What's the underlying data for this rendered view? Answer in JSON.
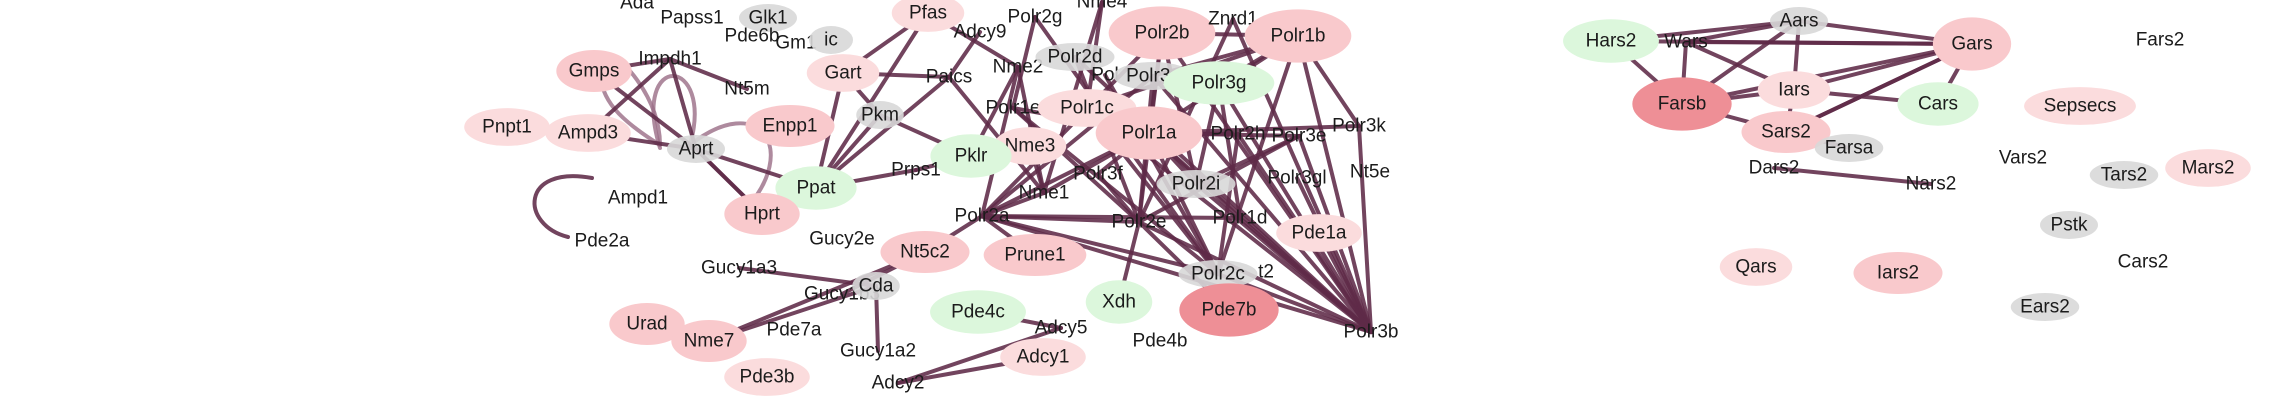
{
  "colors": {
    "edge_dark": "#5e2a48",
    "edge_light": "#9a6d86",
    "node_pink": "#f9c9cc",
    "node_pink_strong": "#f4a3a8",
    "node_red": "#ee8f96",
    "node_pale": "#fbdcdd",
    "node_green": "#dcf7dc",
    "node_grey": "#d8d8d8"
  },
  "nodes": [
    {
      "id": "Ada",
      "label": "Ada",
      "style": "plain"
    },
    {
      "id": "Papss1",
      "label": "Papss1",
      "style": "plain"
    },
    {
      "id": "Glk1",
      "label": "Glk1",
      "style": "grey"
    },
    {
      "id": "Pde6b",
      "label": "Pde6b",
      "style": "plain"
    },
    {
      "id": "Gm1",
      "label": "Gm1",
      "style": "plain"
    },
    {
      "id": "ic",
      "label": "ic",
      "style": "grey"
    },
    {
      "id": "Pfas",
      "label": "Pfas",
      "style": "pale"
    },
    {
      "id": "Adcy9",
      "label": "Adcy9",
      "style": "plain"
    },
    {
      "id": "Polr2g",
      "label": "Polr2g",
      "style": "plain"
    },
    {
      "id": "Nme4",
      "label": "Nme4",
      "style": "plain"
    },
    {
      "id": "Polr2b",
      "label": "Polr2b",
      "style": "pink_lg"
    },
    {
      "id": "Znrd1",
      "label": "Znrd1",
      "style": "plain"
    },
    {
      "id": "Polr1b",
      "label": "Polr1b",
      "style": "pink_lg"
    },
    {
      "id": "Gmps",
      "label": "Gmps",
      "style": "pink"
    },
    {
      "id": "Impdh1",
      "label": "Impdh1",
      "style": "plain"
    },
    {
      "id": "Nt5m",
      "label": "Nt5m",
      "style": "plain"
    },
    {
      "id": "Gart",
      "label": "Gart",
      "style": "pale"
    },
    {
      "id": "Paics",
      "label": "Paics",
      "style": "plain"
    },
    {
      "id": "Nme2",
      "label": "Nme2",
      "style": "plain"
    },
    {
      "id": "Polr2d",
      "label": "Polr2d",
      "style": "grey"
    },
    {
      "id": "Pol",
      "label": "Pol",
      "style": "plain"
    },
    {
      "id": "Polr3c",
      "label": "Polr3c",
      "style": "grey"
    },
    {
      "id": "Polr3g",
      "label": "Polr3g",
      "style": "green"
    },
    {
      "id": "Pnpt1",
      "label": "Pnpt1",
      "style": "pale"
    },
    {
      "id": "Ampd3",
      "label": "Ampd3",
      "style": "pale"
    },
    {
      "id": "Enpp1",
      "label": "Enpp1",
      "style": "pink"
    },
    {
      "id": "Pkm",
      "label": "Pkm",
      "style": "grey"
    },
    {
      "id": "Polr1e",
      "label": "Polr1e",
      "style": "plain"
    },
    {
      "id": "Polr1c",
      "label": "Polr1c",
      "style": "pale"
    },
    {
      "id": "Polr1a",
      "label": "Polr1a",
      "style": "pink_lg"
    },
    {
      "id": "Polr2h",
      "label": "Polr2h",
      "style": "plain"
    },
    {
      "id": "Polr3e",
      "label": "Polr3e",
      "style": "plain"
    },
    {
      "id": "Polr3k",
      "label": "Polr3k",
      "style": "plain"
    },
    {
      "id": "Aprt",
      "label": "Aprt",
      "style": "grey"
    },
    {
      "id": "Nme3",
      "label": "Nme3",
      "style": "pale"
    },
    {
      "id": "Pklr",
      "label": "Pklr",
      "style": "green"
    },
    {
      "id": "Prps1",
      "label": "Prps1",
      "style": "plain"
    },
    {
      "id": "Polr3f",
      "label": "Polr3f",
      "style": "plain"
    },
    {
      "id": "Polr2i",
      "label": "Polr2i",
      "style": "grey"
    },
    {
      "id": "Polr3gl",
      "label": "Polr3gl",
      "style": "plain"
    },
    {
      "id": "Nt5e",
      "label": "Nt5e",
      "style": "plain"
    },
    {
      "id": "Ppat",
      "label": "Ppat",
      "style": "green"
    },
    {
      "id": "Nme1",
      "label": "Nme1",
      "style": "plain"
    },
    {
      "id": "Ampd1",
      "label": "Ampd1",
      "style": "plain"
    },
    {
      "id": "Hprt",
      "label": "Hprt",
      "style": "pink"
    },
    {
      "id": "Polr2a",
      "label": "Polr2a",
      "style": "plain"
    },
    {
      "id": "Polr2e",
      "label": "Polr2e",
      "style": "plain"
    },
    {
      "id": "Polr1d",
      "label": "Polr1d",
      "style": "plain"
    },
    {
      "id": "Pde1a",
      "label": "Pde1a",
      "style": "pale"
    },
    {
      "id": "Pde2a",
      "label": "Pde2a",
      "style": "plain"
    },
    {
      "id": "Gucy2e",
      "label": "Gucy2e",
      "style": "plain"
    },
    {
      "id": "Nt5c2",
      "label": "Nt5c2",
      "style": "pink"
    },
    {
      "id": "Prune1",
      "label": "Prune1",
      "style": "pink"
    },
    {
      "id": "Gucy1a3",
      "label": "Gucy1a3",
      "style": "plain"
    },
    {
      "id": "Polr2c",
      "label": "Polr2c",
      "style": "grey"
    },
    {
      "id": "t2",
      "label": "t2",
      "style": "plain"
    },
    {
      "id": "Gucy1b3",
      "label": "Gucy1b3",
      "style": "plain"
    },
    {
      "id": "Cda",
      "label": "Cda",
      "style": "grey"
    },
    {
      "id": "Xdh",
      "label": "Xdh",
      "style": "green"
    },
    {
      "id": "Pde7b",
      "label": "Pde7b",
      "style": "red"
    },
    {
      "id": "Pde4c",
      "label": "Pde4c",
      "style": "green"
    },
    {
      "id": "Urad",
      "label": "Urad",
      "style": "pink"
    },
    {
      "id": "Nme7",
      "label": "Nme7",
      "style": "pink"
    },
    {
      "id": "Pde7a",
      "label": "Pde7a",
      "style": "plain"
    },
    {
      "id": "Adcy5",
      "label": "Adcy5",
      "style": "plain"
    },
    {
      "id": "Pde4b",
      "label": "Pde4b",
      "style": "plain"
    },
    {
      "id": "Polr3b",
      "label": "Polr3b",
      "style": "plain"
    },
    {
      "id": "Gucy1a2",
      "label": "Gucy1a2",
      "style": "plain"
    },
    {
      "id": "Adcy1",
      "label": "Adcy1",
      "style": "pale"
    },
    {
      "id": "Pde3b",
      "label": "Pde3b",
      "style": "pale"
    },
    {
      "id": "Adcy2",
      "label": "Adcy2",
      "style": "plain"
    },
    {
      "id": "Aars",
      "label": "Aars",
      "style": "grey"
    },
    {
      "id": "Hars2",
      "label": "Hars2",
      "style": "green"
    },
    {
      "id": "Wars",
      "label": "Wars",
      "style": "plain"
    },
    {
      "id": "Gars",
      "label": "Gars",
      "style": "pink_lg"
    },
    {
      "id": "Fars2",
      "label": "Fars2",
      "style": "plain"
    },
    {
      "id": "Farsb",
      "label": "Farsb",
      "style": "red"
    },
    {
      "id": "Iars",
      "label": "Iars",
      "style": "pale"
    },
    {
      "id": "Cars",
      "label": "Cars",
      "style": "green"
    },
    {
      "id": "Sepsecs",
      "label": "Sepsecs",
      "style": "pale"
    },
    {
      "id": "Sars2",
      "label": "Sars2",
      "style": "pink"
    },
    {
      "id": "Farsa",
      "label": "Farsa",
      "style": "grey"
    },
    {
      "id": "Vars2",
      "label": "Vars2",
      "style": "plain"
    },
    {
      "id": "Dars2",
      "label": "Dars2",
      "style": "plain"
    },
    {
      "id": "Tars2",
      "label": "Tars2",
      "style": "grey"
    },
    {
      "id": "Mars2",
      "label": "Mars2",
      "style": "pale"
    },
    {
      "id": "Nars2",
      "label": "Nars2",
      "style": "plain"
    },
    {
      "id": "Pstk",
      "label": "Pstk",
      "style": "grey"
    },
    {
      "id": "Qars",
      "label": "Qars",
      "style": "pale"
    },
    {
      "id": "Iars2",
      "label": "Iars2",
      "style": "pink"
    },
    {
      "id": "Cars2",
      "label": "Cars2",
      "style": "plain"
    },
    {
      "id": "Ears2",
      "label": "Ears2",
      "style": "grey"
    }
  ],
  "edges": [
    [
      "Gmps",
      "Impdh1"
    ],
    [
      "Gmps",
      "Aprt"
    ],
    [
      "Impdh1",
      "Aprt"
    ],
    [
      "Impdh1",
      "Nt5m"
    ],
    [
      "Ampd3",
      "Aprt"
    ],
    [
      "Ampd3",
      "Impdh1"
    ],
    [
      "Aprt",
      "Hprt"
    ],
    [
      "Aprt",
      "Ppat"
    ],
    [
      "Hprt",
      "Aprt"
    ],
    [
      "Gart",
      "Pfas"
    ],
    [
      "Gart",
      "Paics"
    ],
    [
      "Gart",
      "Ppat"
    ],
    [
      "Paics",
      "Ppat"
    ],
    [
      "Pfas",
      "Ppat"
    ],
    [
      "Pkm",
      "Ppat"
    ],
    [
      "Pkm",
      "Gart"
    ],
    [
      "Pklr",
      "Prps1"
    ],
    [
      "Prps1",
      "Ppat"
    ],
    [
      "Pklr",
      "Nme3"
    ],
    [
      "Pkm",
      "Pklr"
    ],
    [
      "Nme2",
      "Nme1"
    ],
    [
      "Nme3",
      "Nme1"
    ],
    [
      "Nme2",
      "Pklr"
    ],
    [
      "Nme4",
      "Nme1"
    ],
    [
      "Nme7",
      "Nt5c2"
    ],
    [
      "Urad",
      "Nme7"
    ],
    [
      "Nme7",
      "Cda"
    ],
    [
      "Cda",
      "Gucy1a2"
    ],
    [
      "Gucy1a3",
      "Cda"
    ],
    [
      "Gucy1b3",
      "Nt5c2"
    ],
    [
      "Nt5c2",
      "Polr2a"
    ],
    [
      "Polr2a",
      "Nme1"
    ],
    [
      "Prune1",
      "Polr2a"
    ],
    [
      "Adcy2",
      "Adcy5"
    ],
    [
      "Adcy1",
      "Adcy2"
    ],
    [
      "Pde4c",
      "Adcy5"
    ],
    [
      "Xdh",
      "Polr2e"
    ],
    [
      "Polr2a",
      "Polr2b"
    ],
    [
      "Polr2a",
      "Polr1a"
    ],
    [
      "Polr2a",
      "Polr2e"
    ],
    [
      "Polr2a",
      "Polr2c"
    ],
    [
      "Polr2a",
      "Polr3b"
    ],
    [
      "Polr2a",
      "Polr1d"
    ],
    [
      "Polr2b",
      "Polr1a"
    ],
    [
      "Polr2b",
      "Polr2e"
    ],
    [
      "Polr2b",
      "Polr3b"
    ],
    [
      "Polr2b",
      "Polr1b"
    ],
    [
      "Polr2b",
      "Polr2i"
    ],
    [
      "Polr1a",
      "Polr1b"
    ],
    [
      "Polr1a",
      "Polr3b"
    ],
    [
      "Polr1a",
      "Polr2c"
    ],
    [
      "Polr1a",
      "Polr1e"
    ],
    [
      "Polr1a",
      "Polr1c"
    ],
    [
      "Polr1a",
      "Polr3k"
    ],
    [
      "Polr1a",
      "Polr3e"
    ],
    [
      "Polr1a",
      "Polr2h"
    ],
    [
      "Polr1a",
      "Polr3f"
    ],
    [
      "Polr1a",
      "Polr2i"
    ],
    [
      "Polr1a",
      "Polr1d"
    ],
    [
      "Polr1a",
      "Nme1"
    ],
    [
      "Polr1b",
      "Polr3g"
    ],
    [
      "Polr1b",
      "Polr3b"
    ],
    [
      "Polr1b",
      "Polr1c"
    ],
    [
      "Polr1b",
      "Polr3k"
    ],
    [
      "Polr1b",
      "Polr2c"
    ],
    [
      "Polr1b",
      "Polr3c"
    ],
    [
      "Polr3c",
      "Polr3b"
    ],
    [
      "Polr3c",
      "Polr2e"
    ],
    [
      "Polr3g",
      "Polr3b"
    ],
    [
      "Polr3g",
      "Polr2i"
    ],
    [
      "Polr3k",
      "Polr3b"
    ],
    [
      "Polr3e",
      "Polr3b"
    ],
    [
      "Polr3gl",
      "Polr3b"
    ],
    [
      "Polr1d",
      "Polr3b"
    ],
    [
      "Polr2c",
      "Polr3b"
    ],
    [
      "Pde1a",
      "Polr3b"
    ],
    [
      "Polr2e",
      "Polr3b"
    ],
    [
      "Polr2i",
      "Polr3b"
    ],
    [
      "Polr3f",
      "Polr2e"
    ],
    [
      "Polr2d",
      "Polr2e"
    ],
    [
      "Polr2g",
      "Polr2c"
    ],
    [
      "Znrd1",
      "Polr3b"
    ],
    [
      "Znrd1",
      "Polr2e"
    ],
    [
      "Polr2h",
      "Polr2c"
    ],
    [
      "Nme2",
      "Polr2a"
    ],
    [
      "Adcy9",
      "Paics"
    ],
    [
      "Polr2g",
      "Polr1e"
    ],
    [
      "Nme4",
      "Polr1c"
    ],
    [
      "Paics",
      "Nme1"
    ],
    [
      "Pfas",
      "Nme2"
    ],
    [
      "Pol",
      "Polr2c"
    ],
    [
      "Polr1e",
      "Polr2e"
    ],
    [
      "Polr1c",
      "Polr3b"
    ],
    [
      "Polr3e",
      "Polr2e"
    ],
    [
      "Pde7b",
      "Polr2e"
    ],
    [
      "Polr2c",
      "Polr1c"
    ],
    [
      "Polr2d",
      "Polr3b"
    ],
    [
      "Polr2h",
      "Polr3b"
    ],
    [
      "Polr1e",
      "Polr2c"
    ],
    [
      "Polr2i",
      "Polr3e"
    ],
    [
      "Polr3c",
      "Polr2a"
    ],
    [
      "Polr3g",
      "Polr1d"
    ],
    [
      "Hars2",
      "Gars"
    ],
    [
      "Hars2",
      "Aars"
    ],
    [
      "Hars2",
      "Farsb"
    ],
    [
      "Wars",
      "Gars"
    ],
    [
      "Wars",
      "Aars"
    ],
    [
      "Wars",
      "Farsb"
    ],
    [
      "Wars",
      "Iars"
    ],
    [
      "Aars",
      "Gars"
    ],
    [
      "Aars",
      "Iars"
    ],
    [
      "Aars",
      "Farsb"
    ],
    [
      "Gars",
      "Iars"
    ],
    [
      "Gars",
      "Farsb"
    ],
    [
      "Gars",
      "Cars"
    ],
    [
      "Gars",
      "Sars2"
    ],
    [
      "Iars",
      "Sars2"
    ],
    [
      "Farsb",
      "Iars"
    ],
    [
      "Farsb",
      "Sars2"
    ],
    [
      "Sars2",
      "Farsa"
    ],
    [
      "Sars2",
      "Gars"
    ],
    [
      "Dars2",
      "Nars2"
    ],
    [
      "Iars",
      "Cars"
    ]
  ]
}
